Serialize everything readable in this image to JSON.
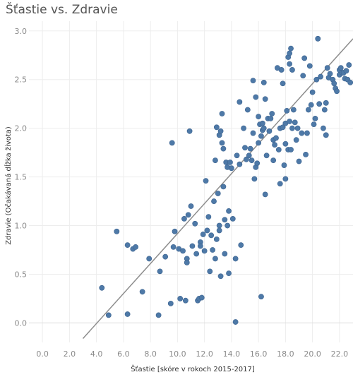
{
  "chart_data": {
    "type": "scatter",
    "title": "Šťastie vs. Zdravie",
    "xlabel": "Šťastie  [skóre v rokoch 2015-2017]",
    "ylabel": "Zdravie (Očakávaná dĺžka života)",
    "xlim": [
      -1.0,
      23.0
    ],
    "ylim": [
      -0.2,
      3.1
    ],
    "xticks": [
      "0.0",
      "2.0",
      "4.0",
      "6.0",
      "8.0",
      "10.0",
      "12.0",
      "14.0",
      "16.0",
      "18.0",
      "20.0",
      "22.0"
    ],
    "yticks": [
      "0.0",
      "0.5",
      "1.0",
      "1.5",
      "2.0",
      "2.5",
      "3.0"
    ],
    "grid": true,
    "point_color": "#4e79a7",
    "trend_line": {
      "color": "#8c8c8c",
      "x": [
        3.0,
        23.0
      ],
      "y": [
        -0.16,
        2.92
      ]
    },
    "points": [
      [
        4.4,
        0.36
      ],
      [
        4.9,
        0.08
      ],
      [
        5.5,
        0.94
      ],
      [
        6.3,
        0.09
      ],
      [
        6.3,
        0.8
      ],
      [
        6.7,
        0.76
      ],
      [
        6.9,
        0.78
      ],
      [
        7.4,
        0.32
      ],
      [
        7.9,
        0.66
      ],
      [
        8.6,
        0.08
      ],
      [
        8.7,
        0.53
      ],
      [
        9.1,
        0.68
      ],
      [
        9.5,
        0.2
      ],
      [
        9.6,
        1.85
      ],
      [
        9.7,
        0.78
      ],
      [
        9.8,
        0.94
      ],
      [
        10.1,
        0.76
      ],
      [
        10.2,
        0.25
      ],
      [
        10.4,
        0.74
      ],
      [
        10.5,
        1.07
      ],
      [
        10.6,
        0.23
      ],
      [
        10.7,
        0.66
      ],
      [
        10.7,
        0.62
      ],
      [
        10.8,
        1.11
      ],
      [
        10.9,
        1.97
      ],
      [
        11.0,
        1.2
      ],
      [
        11.1,
        0.79
      ],
      [
        11.3,
        1.02
      ],
      [
        11.4,
        0.71
      ],
      [
        11.5,
        0.23
      ],
      [
        11.6,
        0.25
      ],
      [
        11.7,
        0.83
      ],
      [
        11.7,
        0.79
      ],
      [
        11.8,
        0.26
      ],
      [
        11.9,
        0.91
      ],
      [
        12.0,
        0.74
      ],
      [
        12.1,
        1.46
      ],
      [
        12.2,
        0.95
      ],
      [
        12.3,
        1.09
      ],
      [
        12.4,
        0.53
      ],
      [
        12.5,
        0.9
      ],
      [
        12.6,
        0.75
      ],
      [
        12.7,
        1.25
      ],
      [
        12.8,
        1.67
      ],
      [
        12.8,
        0.66
      ],
      [
        12.9,
        0.86
      ],
      [
        12.9,
        2.01
      ],
      [
        13.0,
        1.33
      ],
      [
        13.1,
        1.0
      ],
      [
        13.1,
        0.95
      ],
      [
        13.1,
        1.93
      ],
      [
        13.2,
        1.97
      ],
      [
        13.2,
        0.48
      ],
      [
        13.3,
        1.85
      ],
      [
        13.3,
        2.15
      ],
      [
        13.4,
        1.79
      ],
      [
        13.4,
        1.4
      ],
      [
        13.5,
        1.06
      ],
      [
        13.5,
        0.71
      ],
      [
        13.6,
        1.65
      ],
      [
        13.7,
        1.0
      ],
      [
        13.7,
        1.6
      ],
      [
        13.8,
        0.51
      ],
      [
        13.8,
        1.15
      ],
      [
        13.9,
        1.65
      ],
      [
        14.0,
        1.59
      ],
      [
        14.1,
        1.07
      ],
      [
        14.3,
        0.66
      ],
      [
        14.3,
        0.01
      ],
      [
        14.4,
        1.72
      ],
      [
        14.6,
        2.27
      ],
      [
        14.6,
        1.63
      ],
      [
        14.7,
        0.8
      ],
      [
        14.9,
        2.0
      ],
      [
        15.0,
        1.8
      ],
      [
        15.1,
        1.68
      ],
      [
        15.2,
        2.19
      ],
      [
        15.3,
        1.72
      ],
      [
        15.4,
        1.79
      ],
      [
        15.5,
        1.67
      ],
      [
        15.6,
        1.95
      ],
      [
        15.6,
        2.49
      ],
      [
        15.7,
        1.48
      ],
      [
        15.8,
        2.32
      ],
      [
        15.8,
        1.6
      ],
      [
        15.9,
        1.64
      ],
      [
        16.0,
        2.12
      ],
      [
        16.0,
        1.85
      ],
      [
        16.1,
        2.04
      ],
      [
        16.2,
        1.92
      ],
      [
        16.2,
        0.27
      ],
      [
        16.3,
        2.05
      ],
      [
        16.3,
        1.98
      ],
      [
        16.4,
        2.47
      ],
      [
        16.4,
        2.0
      ],
      [
        16.5,
        2.3
      ],
      [
        16.5,
        1.32
      ],
      [
        16.6,
        1.72
      ],
      [
        16.7,
        2.1
      ],
      [
        16.8,
        1.97
      ],
      [
        16.9,
        2.1
      ],
      [
        17.0,
        2.15
      ],
      [
        17.1,
        1.67
      ],
      [
        17.1,
        1.88
      ],
      [
        17.2,
        1.83
      ],
      [
        17.3,
        1.9
      ],
      [
        17.4,
        2.62
      ],
      [
        17.5,
        1.78
      ],
      [
        17.6,
        2.0
      ],
      [
        17.6,
        1.43
      ],
      [
        17.7,
        2.6
      ],
      [
        17.8,
        2.46
      ],
      [
        17.8,
        2.01
      ],
      [
        17.9,
        1.62
      ],
      [
        18.0,
        1.48
      ],
      [
        18.0,
        2.05
      ],
      [
        18.0,
        1.84
      ],
      [
        18.1,
        2.18
      ],
      [
        18.2,
        2.73
      ],
      [
        18.2,
        1.78
      ],
      [
        18.3,
        2.07
      ],
      [
        18.3,
        2.66
      ],
      [
        18.3,
        2.77
      ],
      [
        18.4,
        2.82
      ],
      [
        18.4,
        1.78
      ],
      [
        18.5,
        2.6
      ],
      [
        18.5,
        2.0
      ],
      [
        18.6,
        2.19
      ],
      [
        18.7,
        2.06
      ],
      [
        18.8,
        1.88
      ],
      [
        18.9,
        2.0
      ],
      [
        19.0,
        1.66
      ],
      [
        19.2,
        1.95
      ],
      [
        19.3,
        2.54
      ],
      [
        19.4,
        2.72
      ],
      [
        19.5,
        1.73
      ],
      [
        19.6,
        1.95
      ],
      [
        19.7,
        2.19
      ],
      [
        19.8,
        2.64
      ],
      [
        19.9,
        2.24
      ],
      [
        20.0,
        2.37
      ],
      [
        20.1,
        2.04
      ],
      [
        20.2,
        2.1
      ],
      [
        20.3,
        2.5
      ],
      [
        20.4,
        2.92
      ],
      [
        20.5,
        2.25
      ],
      [
        20.6,
        2.53
      ],
      [
        20.8,
        2.0
      ],
      [
        20.9,
        2.19
      ],
      [
        21.0,
        2.26
      ],
      [
        21.0,
        1.93
      ],
      [
        21.1,
        2.62
      ],
      [
        21.2,
        2.52
      ],
      [
        21.3,
        2.56
      ],
      [
        21.5,
        2.5
      ],
      [
        21.6,
        2.46
      ],
      [
        21.7,
        2.41
      ],
      [
        21.8,
        2.38
      ],
      [
        22.0,
        2.55
      ],
      [
        22.0,
        2.6
      ],
      [
        22.1,
        2.62
      ],
      [
        22.2,
        2.57
      ],
      [
        22.3,
        2.57
      ],
      [
        22.4,
        2.51
      ],
      [
        22.5,
        2.59
      ],
      [
        22.6,
        2.5
      ],
      [
        22.7,
        2.65
      ],
      [
        22.8,
        2.47
      ]
    ]
  }
}
